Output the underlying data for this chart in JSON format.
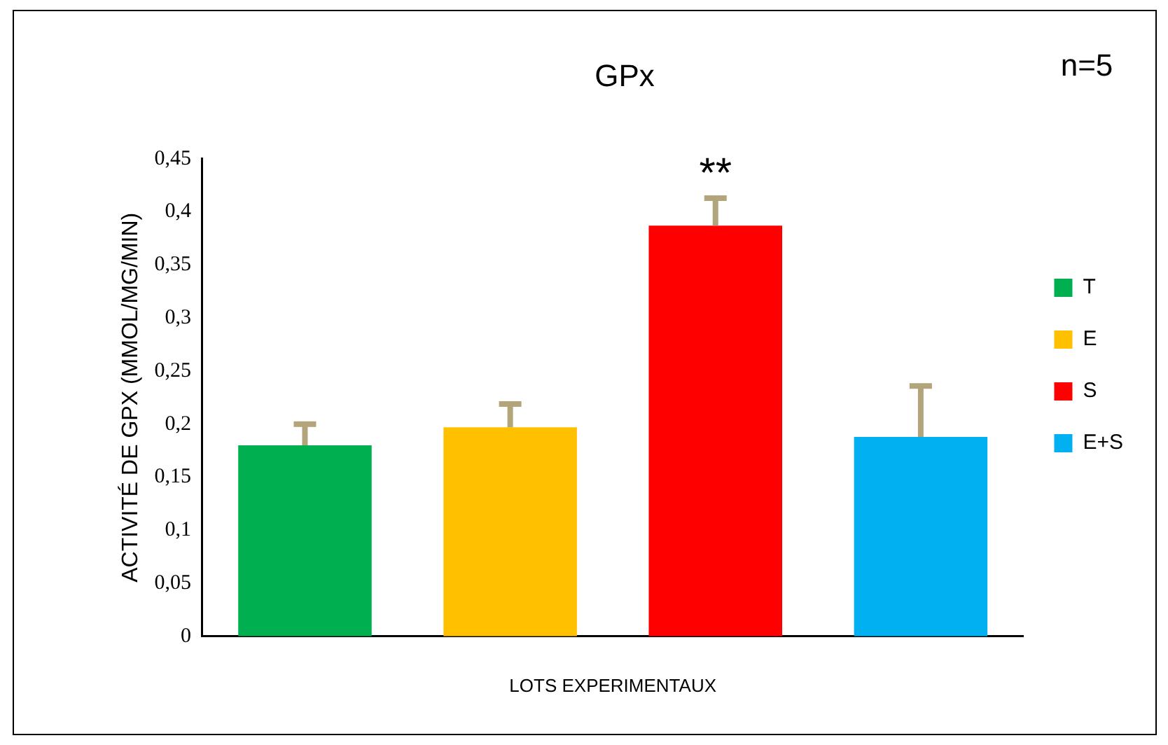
{
  "chart_data": {
    "type": "bar",
    "title": "GPx",
    "ylabel": "ACTIVITÉ DE GPX (MMOL/MG/MIN)",
    "xlabel": "LOTS EXPERIMENTAUX",
    "categories": [
      null,
      null,
      null,
      null
    ],
    "series": [
      {
        "name": "T",
        "color": "#00b050",
        "values": [
          0.18,
          null,
          null,
          null
        ],
        "errors": [
          [
            0.18,
            0.2
          ],
          null,
          null,
          null
        ]
      },
      {
        "name": "E",
        "color": "#ffc000",
        "values": [
          null,
          0.197,
          null,
          null
        ],
        "errors": [
          null,
          [
            0.197,
            0.219
          ],
          null,
          null
        ]
      },
      {
        "name": "S",
        "color": "#ff0000",
        "values": [
          null,
          null,
          0.387,
          null
        ],
        "errors": [
          null,
          null,
          [
            0.387,
            0.413
          ],
          null
        ]
      },
      {
        "name": "E+S",
        "color": "#00b0f0",
        "values": [
          null,
          null,
          null,
          0.188
        ],
        "errors": [
          null,
          null,
          null,
          [
            0.188,
            0.236
          ]
        ]
      }
    ],
    "ylim": [
      0,
      0.45
    ],
    "yticks": [
      0,
      {
        "value": 0.05,
        "label": "0,05"
      },
      {
        "value": 0.1,
        "label": "0,1"
      },
      {
        "value": 0.15,
        "label": "0,15"
      },
      {
        "value": 0.2,
        "label": "0,2"
      },
      {
        "value": 0.25,
        "label": "0,25"
      },
      {
        "value": 0.3,
        "label": "0,3"
      },
      {
        "value": 0.35,
        "label": "0,35"
      },
      {
        "value": 0.4,
        "label": "0,4"
      },
      {
        "value": 0.45,
        "label": "0,45"
      }
    ],
    "grid": false,
    "legend": "right",
    "annotations": [
      "n=5",
      "**"
    ]
  }
}
